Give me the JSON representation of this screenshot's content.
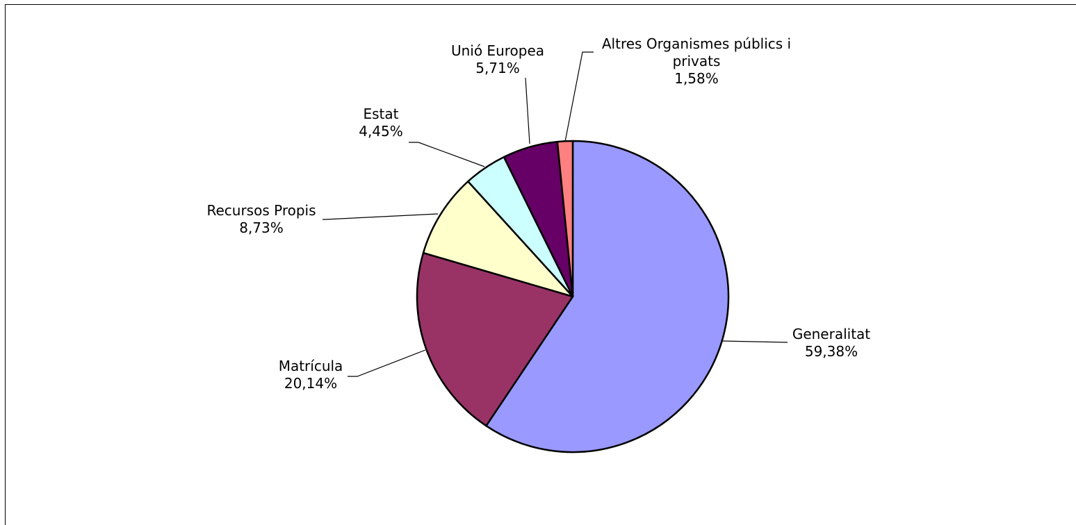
{
  "chart_data": {
    "type": "pie",
    "title": "",
    "start_angle_deg": 0,
    "direction": "clockwise",
    "slices": [
      {
        "label": "Generalitat",
        "value": 59.38,
        "value_label": "59,38%",
        "color": "#9999ff"
      },
      {
        "label": "Matrícula",
        "value": 20.14,
        "value_label": "20,14%",
        "color": "#993366"
      },
      {
        "label": "Recursos Propis",
        "value": 8.73,
        "value_label": "8,73%",
        "color": "#ffffcc"
      },
      {
        "label": "Estat",
        "value": 4.45,
        "value_label": "4,45%",
        "color": "#ccffff"
      },
      {
        "label": "Unió Europea",
        "value": 5.71,
        "value_label": "5,71%",
        "color": "#660066"
      },
      {
        "label": "Altres Organismes públics i privats",
        "label_lines": [
          "Altres Organismes públics i",
          "privats"
        ],
        "value": 1.58,
        "value_label": "1,58%",
        "color": "#ff8080"
      }
    ],
    "legend": "none",
    "data_labels": "outside with leader lines"
  }
}
